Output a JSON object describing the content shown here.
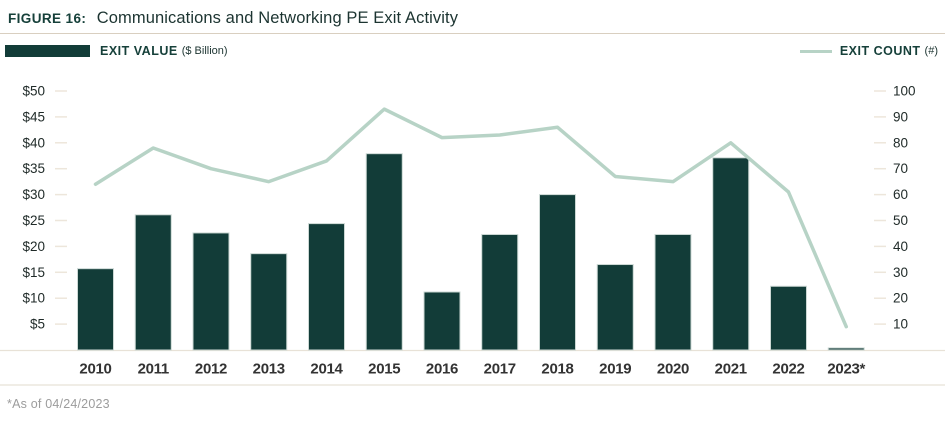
{
  "header": {
    "figure_label": "FIGURE 16:",
    "title": "Communications and Networking PE Exit Activity"
  },
  "legend": {
    "value": {
      "label": "EXIT VALUE",
      "unit": "($ Billion)",
      "color": "#123C38"
    },
    "count": {
      "label": "EXIT COUNT",
      "unit": "(#)",
      "color": "#B7D3C6"
    }
  },
  "footnote": "*As of 04/24/2023",
  "chart_data": {
    "type": "bar",
    "subtype": "bar+line combo, dual axis",
    "title": "Communications and Networking PE Exit Activity",
    "categories": [
      "2010",
      "2011",
      "2012",
      "2013",
      "2014",
      "2015",
      "2016",
      "2017",
      "2018",
      "2019",
      "2020",
      "2021",
      "2022",
      "2023*"
    ],
    "series": [
      {
        "name": "EXIT VALUE ($ Billion)",
        "type": "bar",
        "axis": "left",
        "color": "#123C38",
        "values": [
          15.7,
          26.1,
          22.6,
          18.6,
          24.4,
          37.9,
          11.2,
          22.3,
          30.0,
          16.5,
          22.3,
          37.1,
          12.3,
          0.4
        ]
      },
      {
        "name": "EXIT COUNT (#)",
        "type": "line",
        "axis": "right",
        "color": "#B7D3C6",
        "values": [
          64,
          78,
          70,
          65,
          73,
          93,
          82,
          83,
          86,
          67,
          65,
          80,
          61,
          9
        ]
      }
    ],
    "left_axis": {
      "unit": "$ Billion",
      "tick_labels": [
        "$5",
        "$10",
        "$15",
        "$20",
        "$25",
        "$30",
        "$35",
        "$40",
        "$45",
        "$50"
      ],
      "tick_values": [
        5,
        10,
        15,
        20,
        25,
        30,
        35,
        40,
        45,
        50
      ],
      "range": [
        0,
        50
      ]
    },
    "right_axis": {
      "unit": "#",
      "tick_labels": [
        "10",
        "20",
        "30",
        "40",
        "50",
        "60",
        "70",
        "80",
        "90",
        "100"
      ],
      "tick_values": [
        10,
        20,
        30,
        40,
        50,
        60,
        70,
        80,
        90,
        100
      ],
      "range": [
        0,
        100
      ]
    },
    "grid": "off (tick dashes only)",
    "legend_position": "top"
  }
}
